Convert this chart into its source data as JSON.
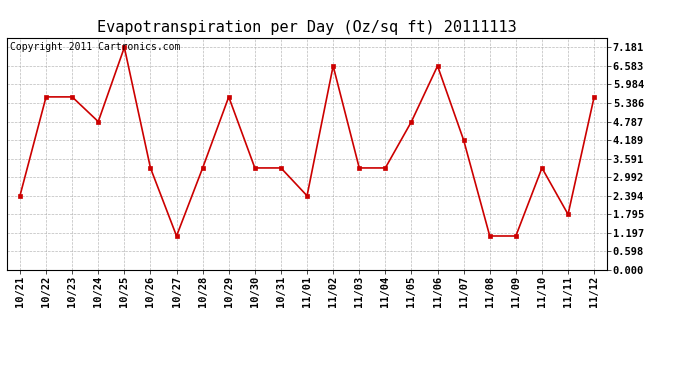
{
  "title": "Evapotranspiration per Day (Oz/sq ft) 20111113",
  "copyright_text": "Copyright 2011 Cartronics.com",
  "x_labels": [
    "10/21",
    "10/22",
    "10/23",
    "10/24",
    "10/25",
    "10/26",
    "10/27",
    "10/28",
    "10/29",
    "10/30",
    "10/31",
    "11/01",
    "11/02",
    "11/03",
    "11/04",
    "11/05",
    "11/06",
    "11/07",
    "11/08",
    "11/09",
    "11/10",
    "11/11",
    "11/12"
  ],
  "y_values": [
    2.394,
    5.584,
    5.584,
    4.787,
    7.181,
    3.292,
    1.097,
    3.292,
    5.584,
    3.292,
    3.292,
    2.394,
    6.583,
    3.292,
    3.292,
    4.787,
    6.583,
    4.189,
    1.097,
    1.097,
    3.292,
    1.795,
    5.584
  ],
  "line_color": "#cc0000",
  "marker": "s",
  "marker_size": 3,
  "background_color": "#ffffff",
  "grid_color": "#aaaaaa",
  "y_ticks": [
    0.0,
    0.598,
    1.197,
    1.795,
    2.394,
    2.992,
    3.591,
    4.189,
    4.787,
    5.386,
    5.984,
    6.583,
    7.181
  ],
  "ylim": [
    0.0,
    7.5
  ],
  "title_fontsize": 11,
  "copyright_fontsize": 7,
  "tick_fontsize": 7.5
}
